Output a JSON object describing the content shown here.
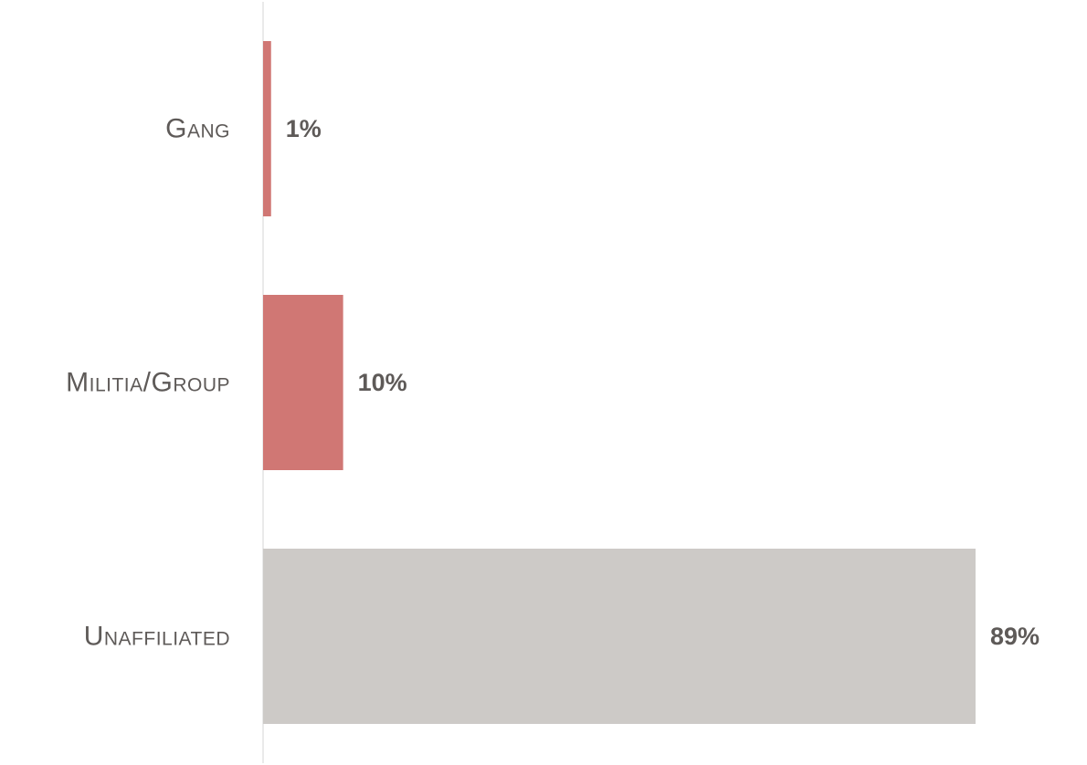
{
  "chart_data": {
    "type": "bar",
    "orientation": "horizontal",
    "categories": [
      "Gang",
      "Militia/Group",
      "Unaffiliated"
    ],
    "values": [
      1,
      10,
      89
    ],
    "value_labels": [
      "1%",
      "10%",
      "89%"
    ],
    "xlim": [
      0,
      100
    ],
    "unit": "%",
    "grid": false,
    "legend": "none",
    "title": "",
    "xlabel": "",
    "ylabel": ""
  },
  "colors": {
    "bars": [
      "#d07774",
      "#d07774",
      "#cdcac7"
    ],
    "axis_line": "#e4e4e4",
    "category_text": "#5e5a58",
    "value_text": "#5e5a58"
  }
}
